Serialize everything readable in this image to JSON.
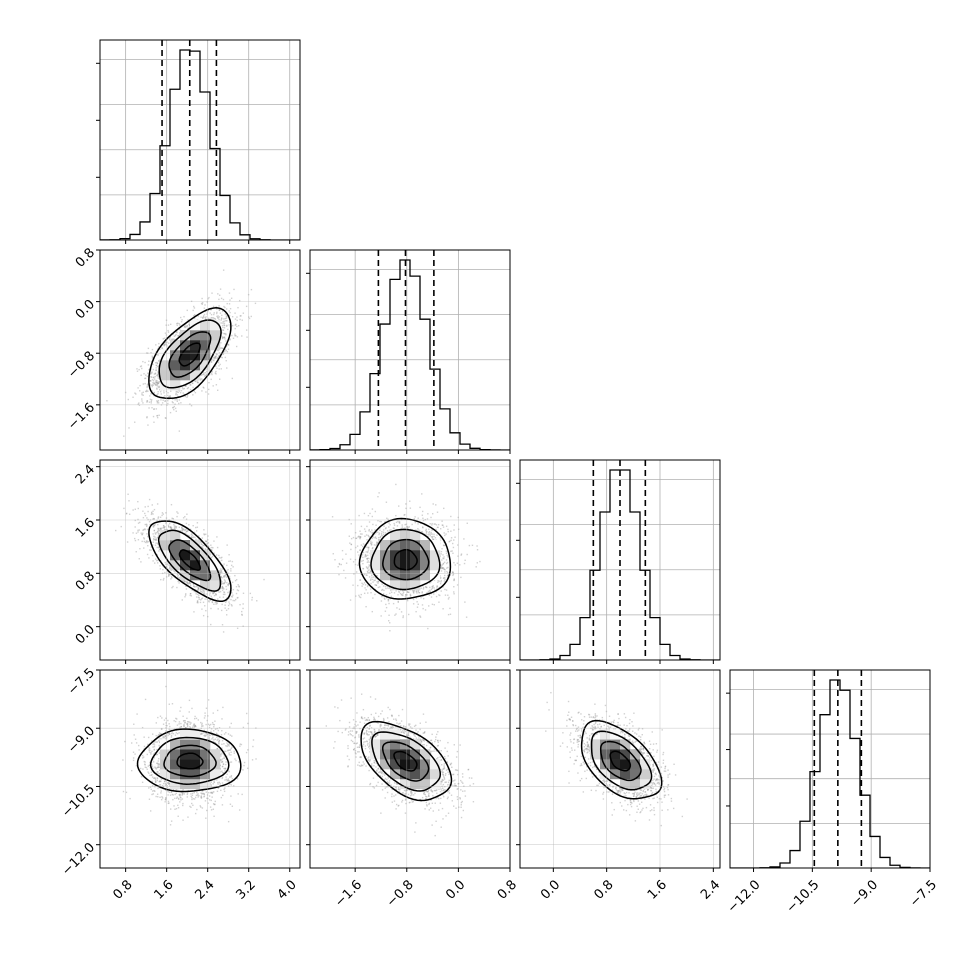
{
  "chart_data": {
    "type": "corner",
    "title": "",
    "grid": true,
    "parameters": [
      {
        "index": 0,
        "label": "",
        "range": [
          0.3,
          4.2
        ],
        "ticks": [
          "0.8",
          "1.6",
          "2.4",
          "3.2",
          "4.0"
        ],
        "tick_values": [
          0.8,
          1.6,
          2.4,
          3.2,
          4.0
        ],
        "mean": 2.05,
        "sigma": 0.4,
        "quantiles": [
          1.51,
          2.05,
          2.57
        ]
      },
      {
        "index": 1,
        "label": "",
        "range": [
          -2.3,
          0.8
        ],
        "ticks": [
          "-1.6",
          "-0.8",
          "0.0",
          "0.8"
        ],
        "tick_values": [
          -1.6,
          -0.8,
          0.0,
          0.8
        ],
        "mean": -0.82,
        "sigma": 0.35,
        "quantiles": [
          -1.24,
          -0.82,
          -0.38
        ]
      },
      {
        "index": 2,
        "label": "",
        "range": [
          -0.5,
          2.5
        ],
        "ticks": [
          "0.0",
          "0.8",
          "1.6",
          "2.4"
        ],
        "tick_values": [
          0.0,
          0.8,
          1.6,
          2.4
        ],
        "mean": 1.0,
        "sigma": 0.3,
        "quantiles": [
          0.6,
          1.0,
          1.38
        ]
      },
      {
        "index": 3,
        "label": "",
        "range": [
          -12.6,
          -7.5
        ],
        "ticks": [
          "-12.0",
          "-10.5",
          "-9.0",
          "-7.5"
        ],
        "tick_values": [
          -12.0,
          -10.5,
          -9.0,
          -7.5
        ],
        "mean": -9.85,
        "sigma": 0.5,
        "quantiles": [
          -10.45,
          -9.85,
          -9.25
        ]
      }
    ],
    "correlations": [
      {
        "x": 0,
        "y": 1,
        "rho": 0.6
      },
      {
        "x": 0,
        "y": 2,
        "rho": -0.7
      },
      {
        "x": 1,
        "y": 2,
        "rho": 0.0
      },
      {
        "x": 0,
        "y": 3,
        "rho": 0.0
      },
      {
        "x": 1,
        "y": 3,
        "rho": -0.5
      },
      {
        "x": 2,
        "y": 3,
        "rho": -0.5
      }
    ],
    "contour_levels_sigma": [
      0.5,
      1.0,
      1.5,
      2.0
    ],
    "colors": {
      "lines": "#000000",
      "scatter": "#9a9a9a",
      "grid": "#b0b0b0"
    }
  }
}
